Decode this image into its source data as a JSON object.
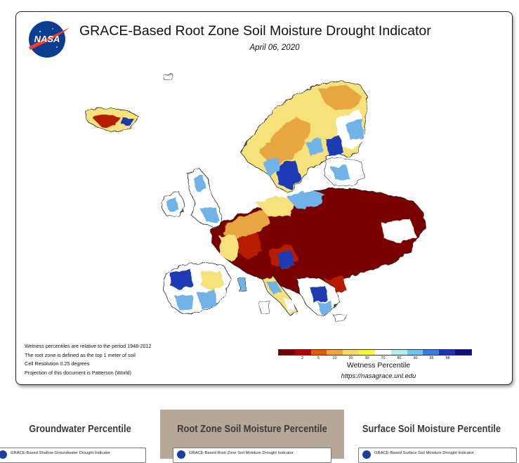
{
  "map": {
    "title": "GRACE-Based Root Zone Soil Moisture Drought Indicator",
    "date": "April 06, 2020",
    "logo_text": "NASA",
    "notes": [
      "Wetness percentiles are relative to the period 1948-2012",
      "The root zone is defined as the top 1 meter of soil",
      "Cell Resolution 0.25 degrees",
      "Projection of this document is Patterson (World)"
    ],
    "legend": {
      "title": "Wetness Percentile",
      "url": "https://nasagrace.unl.edu",
      "colors": [
        "#730000",
        "#b30000",
        "#e65c00",
        "#f2a33d",
        "#f7d96b",
        "#fafa32",
        "#ffffff",
        "#b3ebef",
        "#70c4f0",
        "#3c7ddb",
        "#1f33b8",
        "#0f0f7a"
      ],
      "ticks": [
        "2",
        "5",
        "10",
        "20",
        "30",
        "70",
        "80",
        "90",
        "95",
        "98"
      ]
    },
    "regions": {
      "severe_drought": "#7a0000",
      "drought": "#b81e00",
      "dry": "#e8a640",
      "slightly_dry": "#f6e27a",
      "normal": "#ffffff",
      "wet": "#6fb3e8",
      "very_wet": "#1f3ab5"
    }
  },
  "tabs": [
    {
      "label": "Groundwater Percentile",
      "thumb": "GRACE-Based Shallow Groundwater Drought Indicator",
      "active": false
    },
    {
      "label": "Root Zone Soil Moisture Percentile",
      "thumb": "GRACE-Based Root Zone Soil Moisture Drought Indicator",
      "active": true
    },
    {
      "label": "Surface Soil Moisture Percentile",
      "thumb": "GRACE-Based Surface Soil Moisture Drought Indicator",
      "active": false
    }
  ]
}
